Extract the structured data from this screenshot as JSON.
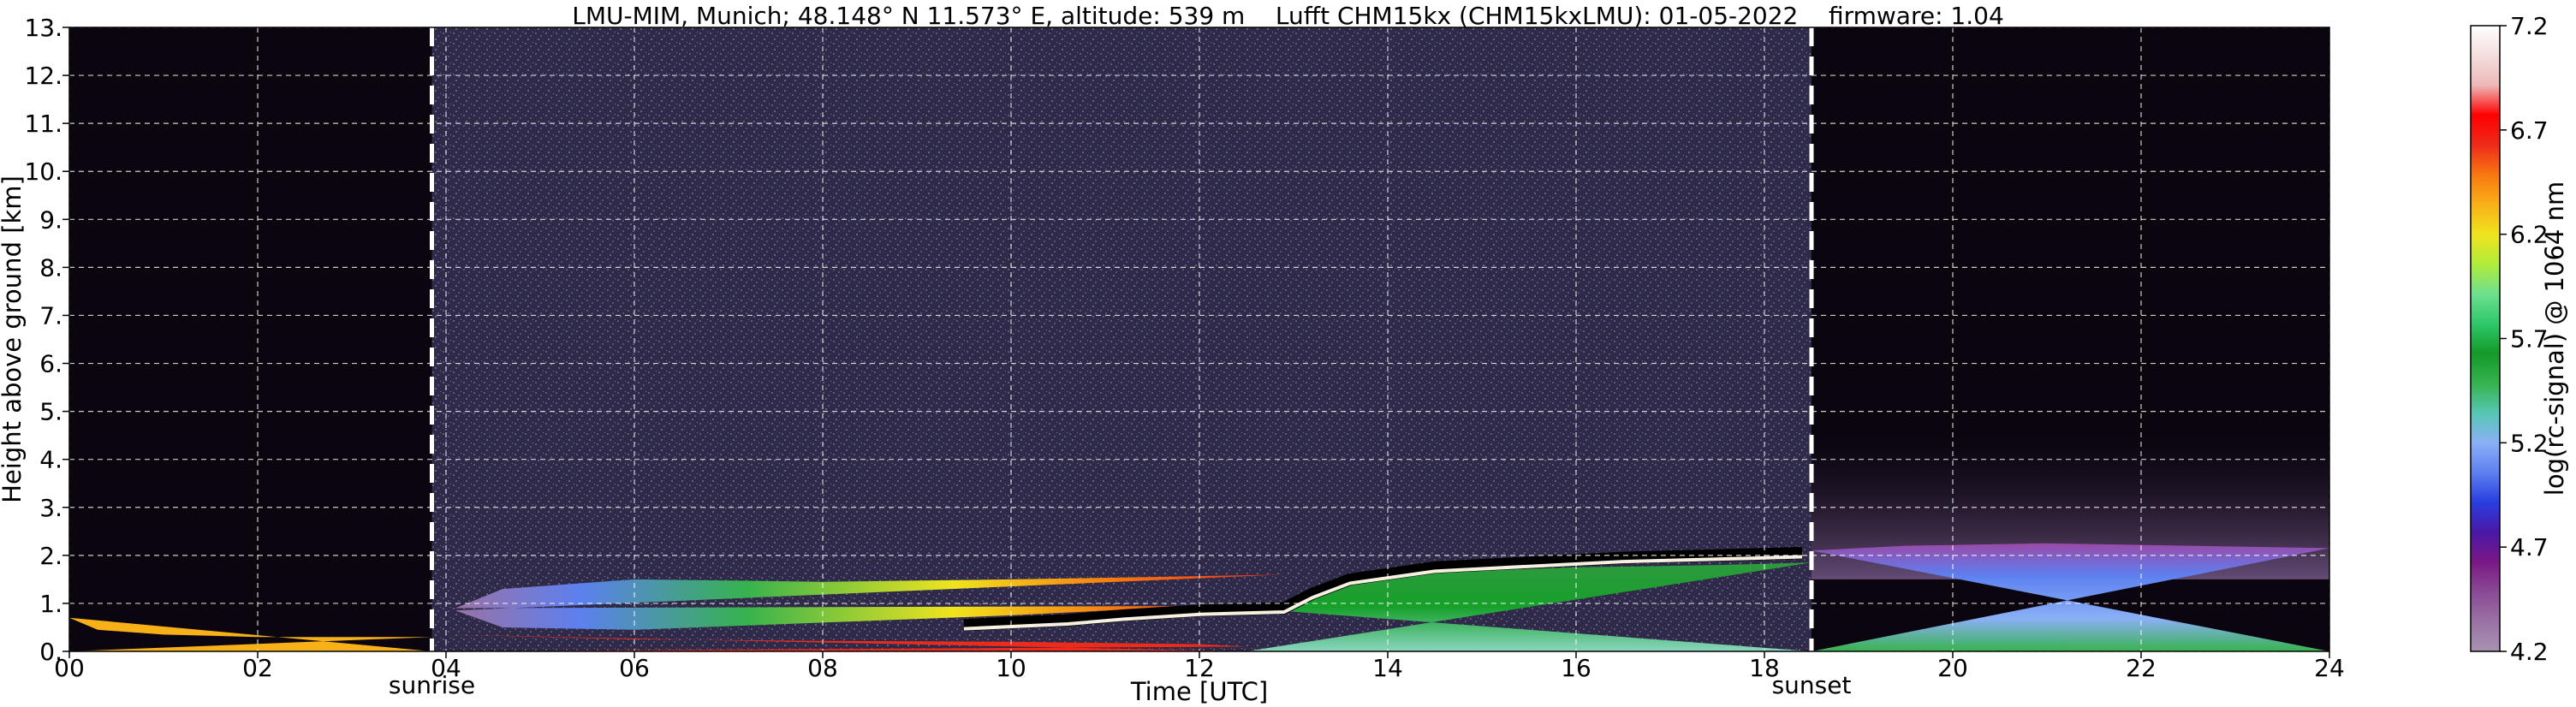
{
  "title": "LMU-MIM, Munich; 48.148° N 11.573° E, altitude: 539 m    Lufft CHM15kx (CHM15kxLMU): 01-05-2022    firmware: 1.04",
  "chart_data": {
    "type": "heatmap",
    "xlabel": "Time [UTC]",
    "ylabel": "Height above ground [km]",
    "colorbar_label": "log(rc-signal) @ 1064 nm",
    "x_ticks": [
      "00",
      "02",
      "04",
      "06",
      "08",
      "10",
      "12",
      "14",
      "16",
      "18",
      "20",
      "22",
      "24"
    ],
    "y_ticks": [
      "0.",
      "1.",
      "2.",
      "3.",
      "4.",
      "5.",
      "6.",
      "7.",
      "8.",
      "9.",
      "10.",
      "11.",
      "12.",
      "13."
    ],
    "colorbar_ticks": [
      "4.2",
      "4.7",
      "5.2",
      "5.7",
      "6.2",
      "6.7",
      "7.2"
    ],
    "xlim": [
      0,
      24
    ],
    "ylim": [
      0,
      13
    ],
    "clim": [
      4.2,
      7.2
    ],
    "grid": true,
    "events": [
      {
        "label": "sunrise",
        "time": 3.85
      },
      {
        "label": "sunset",
        "time": 18.5
      }
    ]
  },
  "colors": {
    "background_night": "#0b0510",
    "background_day": "#2e2a48",
    "grid": "#ffffff",
    "colormap": [
      "#a893b2",
      "#9a72a5",
      "#8a4a95",
      "#7a1885",
      "#4a18a8",
      "#2a3ee0",
      "#5d80f0",
      "#8ab0f5",
      "#56c7b4",
      "#36b24e",
      "#149a28",
      "#2ec86a",
      "#6ee08e",
      "#b2ec3a",
      "#f0e41e",
      "#f8b018",
      "#f77810",
      "#ef2a1a",
      "#ff0000",
      "#eeb8b8",
      "#f3dede",
      "#ffffff"
    ]
  }
}
